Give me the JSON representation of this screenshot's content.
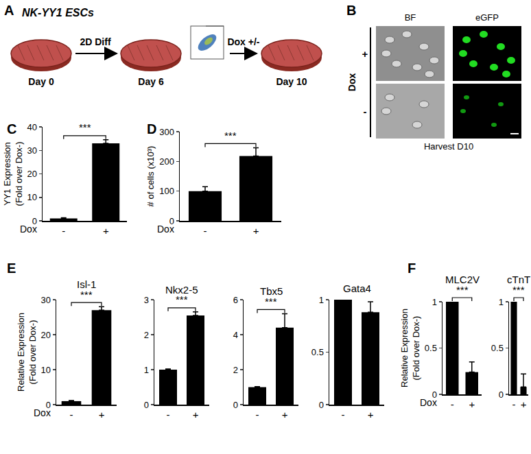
{
  "diagram": {
    "panel_A": {
      "label": "A",
      "title": "NK-YY1 ESCs",
      "steps": [
        "2D Diff",
        "Dox +/-"
      ],
      "days": [
        "Day 0",
        "Day 6",
        "Day 10"
      ]
    },
    "panel_B": {
      "label": "B",
      "columns": [
        "BF",
        "eGFP"
      ],
      "row_title": "Dox",
      "rows": [
        "+",
        "-"
      ],
      "caption": "Harvest D10"
    }
  },
  "chart_data": [
    {
      "panel": "C",
      "type": "bar",
      "categories": [
        "-",
        "+"
      ],
      "values": [
        1,
        33
      ],
      "errors": [
        0.3,
        1.5
      ],
      "color": "#000000",
      "ylabel": "YY1 Expression (Fold over Dox-)",
      "xlabel": "Dox",
      "ylim": [
        0,
        40
      ],
      "yticks": [
        0,
        10,
        20,
        30,
        40
      ],
      "significance": "***"
    },
    {
      "panel": "D",
      "type": "bar",
      "categories": [
        "-",
        "+"
      ],
      "values": [
        100,
        218
      ],
      "errors": [
        15,
        28
      ],
      "color": "#000000",
      "ylabel": "# of cells (x10³)",
      "xlabel": "Dox",
      "ylim": [
        0,
        300
      ],
      "yticks": [
        0,
        100,
        200,
        300
      ],
      "significance": "***"
    },
    {
      "panel": "E",
      "type": "bar",
      "title": "Isl-1",
      "categories": [
        "-",
        "+"
      ],
      "values": [
        1,
        27
      ],
      "errors": [
        0.2,
        1
      ],
      "color": "#000000",
      "ylabel": "Relative Expression (Fold over Dox-)",
      "xlabel": "Dox",
      "ylim": [
        0,
        30
      ],
      "yticks": [
        0,
        10,
        20,
        30
      ],
      "significance": "***"
    },
    {
      "type": "bar",
      "title": "Nkx2-5",
      "categories": [
        "-",
        "+"
      ],
      "values": [
        1,
        2.55
      ],
      "errors": [
        0.02,
        0.1
      ],
      "color": "#000000",
      "ylim": [
        0,
        3
      ],
      "yticks": [
        0,
        1,
        2,
        3
      ],
      "significance": "***"
    },
    {
      "type": "bar",
      "title": "Tbx5",
      "categories": [
        "-",
        "+"
      ],
      "values": [
        1,
        4.4
      ],
      "errors": [
        0.03,
        0.8
      ],
      "color": "#000000",
      "ylim": [
        0,
        6
      ],
      "yticks": [
        0,
        2,
        4,
        6
      ],
      "significance": "***"
    },
    {
      "type": "bar",
      "title": "Gata4",
      "categories": [
        "-",
        "+"
      ],
      "values": [
        1,
        0.88
      ],
      "errors": [
        0,
        0.1
      ],
      "color": "#000000",
      "ylim": [
        0,
        1
      ],
      "yticks": [
        0,
        0.5,
        1
      ]
    },
    {
      "panel": "F",
      "type": "bar",
      "title": "MLC2V",
      "categories": [
        "-",
        "+"
      ],
      "values": [
        1,
        0.24
      ],
      "errors": [
        0,
        0.11
      ],
      "color": "#000000",
      "ylabel": "Relative Expression (Fold over Dox-)",
      "xlabel": "Dox",
      "ylim": [
        0,
        1
      ],
      "yticks": [
        0,
        0.5,
        1
      ],
      "significance": "***"
    },
    {
      "type": "bar",
      "title": "cTnT",
      "categories": [
        "-",
        "+"
      ],
      "values": [
        1,
        0.08
      ],
      "errors": [
        0,
        0.14
      ],
      "color": "#000000",
      "ylim": [
        0,
        1
      ],
      "yticks": [
        0,
        0.5,
        1
      ],
      "significance": "***"
    }
  ]
}
